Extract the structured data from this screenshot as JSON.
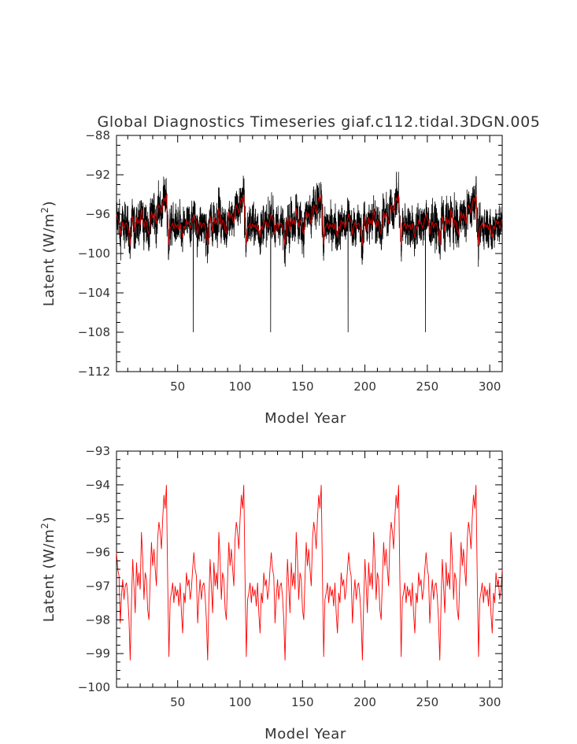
{
  "chart_data": [
    {
      "type": "line",
      "title": "Global Diagnostics Timeseries giaf.c112.tidal.3DGN.005",
      "xlabel": "Model Year",
      "ylabel": "Latent (W/m",
      "ylabel_sup": "2",
      "ylabel_close": ")",
      "xlim": [
        1,
        310
      ],
      "ylim": [
        -112,
        -88
      ],
      "xticks": [
        50,
        100,
        150,
        200,
        250,
        300
      ],
      "yticks": [
        -112,
        -108,
        -104,
        -100,
        -96,
        -92,
        -88
      ],
      "cycle_length": 62,
      "series": [
        {
          "name": "monthly",
          "color": "#000000",
          "points_per_year": 12,
          "spike_years": [
            63,
            125,
            187,
            249
          ],
          "spike_value": -108
        },
        {
          "name": "annual_mean",
          "color": "#cc0000",
          "x": [
            1,
            2,
            3,
            4,
            5,
            6,
            7,
            8,
            9,
            10,
            11,
            12,
            13,
            14,
            15,
            16,
            17,
            18,
            19,
            20,
            21,
            22,
            23,
            24,
            25,
            26,
            27,
            28,
            29,
            30,
            31,
            32,
            33,
            34,
            35,
            36,
            37,
            38,
            39,
            40,
            41,
            42,
            43,
            44,
            45,
            46,
            47,
            48,
            49,
            50,
            51,
            52,
            53,
            54,
            55,
            56,
            57,
            58,
            59,
            60,
            61,
            62,
            63
          ],
          "values": [
            -96.0,
            -96.5,
            -96.7,
            -98.1,
            -97.3,
            -96.8,
            -97.4,
            -97.0,
            -96.9,
            -97.3,
            -98.0,
            -99.2,
            -97.5,
            -96.2,
            -97.0,
            -97.8,
            -96.3,
            -97.0,
            -96.6,
            -97.1,
            -95.4,
            -96.2,
            -97.4,
            -96.6,
            -96.8,
            -97.7,
            -98.0,
            -96.8,
            -95.7,
            -96.4,
            -95.9,
            -96.5,
            -97.0,
            -95.6,
            -95.1,
            -95.4,
            -95.9,
            -95.0,
            -94.3,
            -94.7,
            -94.0,
            -96.8,
            -99.1,
            -97.4,
            -97.2,
            -96.9,
            -97.5,
            -97.0,
            -97.3,
            -97.1,
            -97.6,
            -96.9,
            -97.8,
            -98.4,
            -97.2,
            -97.5,
            -96.6,
            -97.0,
            -96.8,
            -97.4,
            -97.1,
            -96.5,
            -96.1
          ]
        }
      ]
    },
    {
      "type": "line",
      "title": "",
      "xlabel": "Model Year",
      "ylabel": "Latent (W/m",
      "ylabel_sup": "2",
      "ylabel_close": ")",
      "xlim": [
        1,
        310
      ],
      "ylim": [
        -100,
        -93
      ],
      "xticks": [
        50,
        100,
        150,
        200,
        250,
        300
      ],
      "yticks": [
        -100,
        -99,
        -98,
        -97,
        -96,
        -95,
        -94,
        -93
      ],
      "series": [
        {
          "name": "annual_mean",
          "color": "#ff0000"
        }
      ]
    }
  ]
}
